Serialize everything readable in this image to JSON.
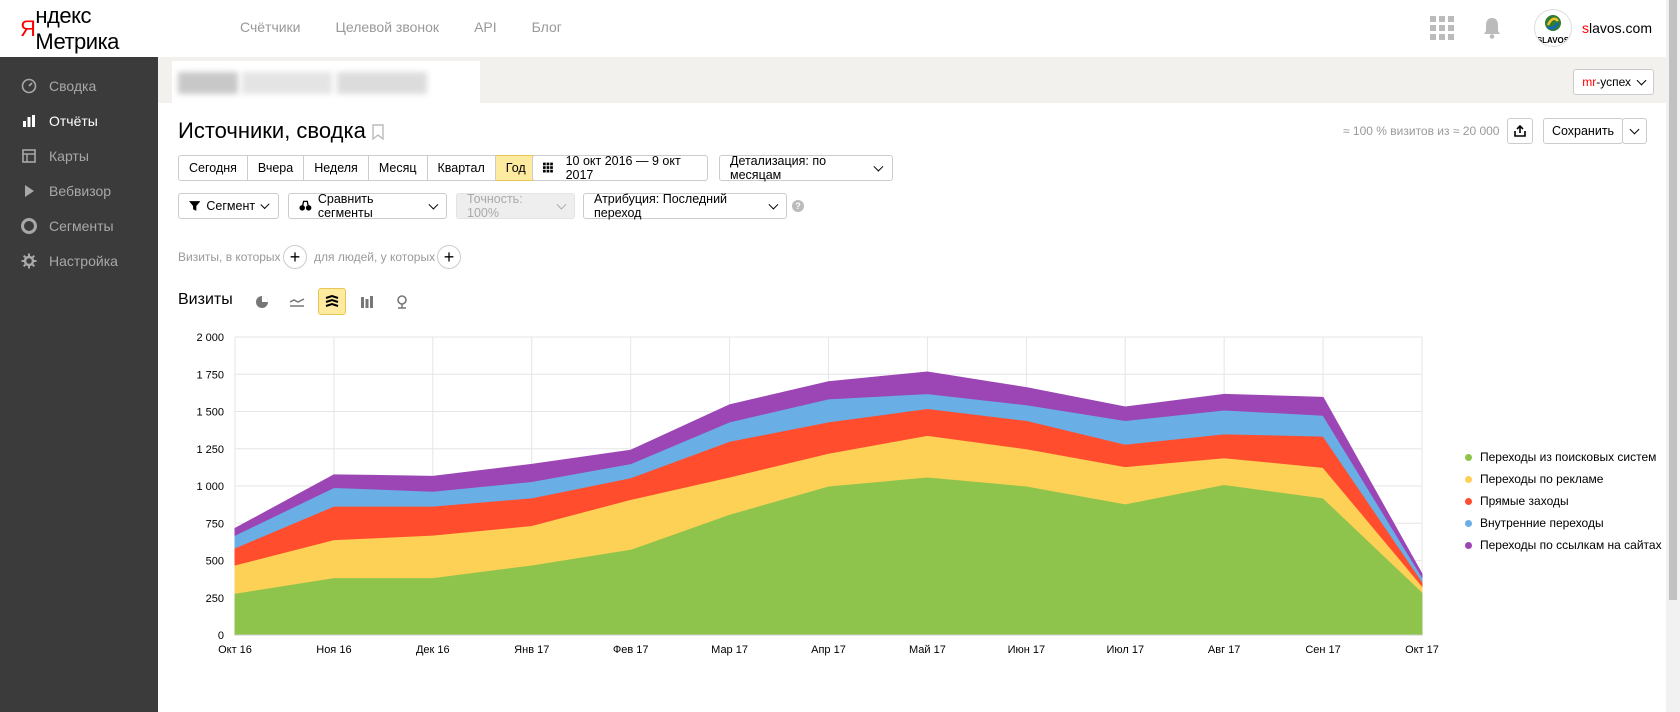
{
  "header": {
    "logo_brand": "Яндекс",
    "logo_product": "Метрика",
    "nav": [
      "Счётчики",
      "Целевой звонок",
      "API",
      "Блог"
    ],
    "username_first": "s",
    "username_rest": "lavos.com",
    "avatar_text": "SLAVOS"
  },
  "sidebar": {
    "items": [
      {
        "label": "Сводка",
        "icon": "gauge-icon"
      },
      {
        "label": "Отчёты",
        "icon": "bar-chart-icon"
      },
      {
        "label": "Карты",
        "icon": "map-icon"
      },
      {
        "label": "Вебвизор",
        "icon": "play-icon"
      },
      {
        "label": "Сегменты",
        "icon": "segments-icon"
      },
      {
        "label": "Настройка",
        "icon": "gear-icon"
      }
    ],
    "active_index": 1
  },
  "counter_bar": {
    "tag_red": "mr",
    "tag_rest": "-успех"
  },
  "report": {
    "title": "Источники, сводка",
    "visits_note": "≈ 100 % визитов из ≈ 20 000",
    "save_label": "Сохранить",
    "periods": [
      "Сегодня",
      "Вчера",
      "Неделя",
      "Месяц",
      "Квартал",
      "Год"
    ],
    "selected_period": "Год",
    "date_range": "10 окт 2016 — 9 окт 2017",
    "detail_label": "Детализация: по месяцам",
    "segment_label": "Сегмент",
    "compare_label": "Сравнить сегменты",
    "accuracy_label": "Точность: 100%",
    "attribution_label": "Атрибуция: Последний переход",
    "help_mark": "?",
    "visits_condition": "Визиты, в которых",
    "people_condition": "для людей, у которых"
  },
  "chart_header": {
    "title": "Визиты",
    "types": [
      "pie-chart-icon",
      "line-chart-icon",
      "stacked-area-icon",
      "bar-chart-icon",
      "map-pin-icon"
    ],
    "selected_type": "stacked-area-icon"
  },
  "colors": {
    "search": "#8ec44c",
    "ads": "#fcd155",
    "direct": "#ff4d2e",
    "internal": "#6aaee6",
    "links": "#9b46b4",
    "accent": "#ffeba0",
    "sidebar": "#3b3b3b"
  },
  "chart_data": {
    "type": "area",
    "stacked": true,
    "categories": [
      "Окт 16",
      "Ноя 16",
      "Дек 16",
      "Янв 17",
      "Фев 17",
      "Мар 17",
      "Апр 17",
      "Май 17",
      "Июн 17",
      "Июл 17",
      "Авг 17",
      "Сен 17",
      "Окт 17"
    ],
    "y_ticks": [
      "0",
      "250",
      "500",
      "750",
      "1 000",
      "1 250",
      "1 500",
      "1 750",
      "2 000"
    ],
    "ylim": [
      0,
      2000
    ],
    "grid": true,
    "legend_position": "right",
    "series": [
      {
        "name": "Переходы из поисковых систем",
        "color": "#8ec44c",
        "values": [
          280,
          385,
          385,
          470,
          575,
          810,
          1000,
          1060,
          1000,
          880,
          1010,
          920,
          290
        ]
      },
      {
        "name": "Переходы по рекламе",
        "color": "#fcd155",
        "values": [
          190,
          255,
          285,
          265,
          335,
          250,
          220,
          280,
          250,
          250,
          180,
          205,
          40
        ]
      },
      {
        "name": "Прямые заходы",
        "color": "#ff4d2e",
        "values": [
          115,
          225,
          195,
          185,
          145,
          240,
          210,
          180,
          190,
          150,
          160,
          210,
          30
        ]
      },
      {
        "name": "Внутренние переходы",
        "color": "#6aaee6",
        "values": [
          85,
          125,
          100,
          110,
          95,
          130,
          155,
          100,
          105,
          160,
          160,
          140,
          30
        ]
      },
      {
        "name": "Переходы по ссылкам на сайтах",
        "color": "#9b46b4",
        "values": [
          45,
          85,
          100,
          115,
          90,
          115,
          115,
          145,
          115,
          90,
          105,
          120,
          20
        ]
      }
    ]
  }
}
